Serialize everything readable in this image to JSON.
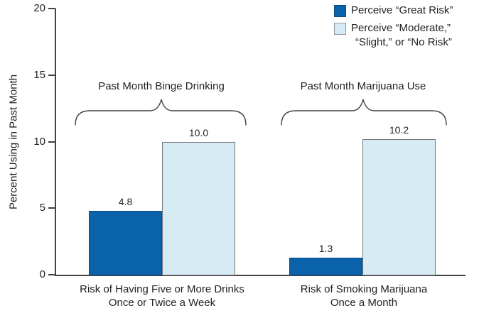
{
  "chart_data": {
    "type": "bar",
    "title": "",
    "ylabel": "Percent Using in Past Month",
    "ylim": [
      0,
      20
    ],
    "yticks": [
      0,
      5,
      10,
      15,
      20
    ],
    "grid": false,
    "legend_position": "top-right",
    "group_labels": [
      "Past Month Binge Drinking",
      "Past Month Marijuana Use"
    ],
    "categories": [
      [
        "Risk of Having Five or More Drinks",
        "Once or Twice a Week"
      ],
      [
        "Risk of Smoking Marijuana",
        "Once a Month"
      ]
    ],
    "series": [
      {
        "name": "Perceive “Great Risk”",
        "color": "#0a62ab",
        "border": "#0d4c82",
        "values": [
          4.8,
          1.3
        ]
      },
      {
        "name": "Perceive “Moderate,” “Slight,” or “No Risk”",
        "color": "#d7ebf4",
        "border": "#77787b",
        "values": [
          10.0,
          10.2
        ]
      }
    ]
  },
  "legend": {
    "items": [
      {
        "label": "Perceive “Great Risk”",
        "color": "#0a62ab",
        "border": "#0d4c82"
      },
      {
        "label_line1": "Perceive “Moderate,”",
        "label_line2": "“Slight,” or “No Risk”",
        "color": "#d7ebf4",
        "border": "#8d99a1"
      }
    ]
  },
  "colors": {
    "axis": "#414042",
    "text": "#231f20"
  }
}
